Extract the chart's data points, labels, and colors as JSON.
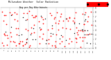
{
  "title": "Milwaukee Weather  Solar Radiation",
  "subtitle": "Avg per Day W/m²/minute",
  "background_color": "#ffffff",
  "plot_bg_color": "#ffffff",
  "grid_color": "#b0b0b0",
  "dot_color_red": "#ff0000",
  "dot_color_black": "#000000",
  "legend_box_color": "#ff0000",
  "ylim": [
    0,
    9
  ],
  "xlim": [
    0,
    150
  ],
  "num_points": 130,
  "seed": 7,
  "num_vlines": 10,
  "title_fontsize": 2.5,
  "tick_fontsize": 1.8
}
